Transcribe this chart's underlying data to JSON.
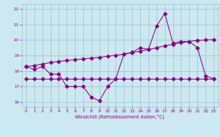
{
  "xlabel": "Windchill (Refroidissement éolien,°C)",
  "bg_color": "#cce8f0",
  "grid_color": "#99bbcc",
  "line_color": "#880088",
  "xlim": [
    -0.5,
    23.5
  ],
  "ylim": [
    15.7,
    22.3
  ],
  "yticks": [
    16,
    17,
    18,
    19,
    20,
    21,
    22
  ],
  "xticks": [
    0,
    1,
    2,
    3,
    4,
    5,
    6,
    7,
    8,
    9,
    10,
    11,
    12,
    13,
    14,
    15,
    16,
    17,
    18,
    19,
    20,
    21,
    22,
    23
  ],
  "series1_x": [
    0,
    1,
    2,
    3,
    4,
    5,
    6,
    7,
    8,
    9,
    10,
    11,
    12,
    13,
    14,
    15,
    16,
    17,
    18,
    19,
    20,
    21,
    22,
    23
  ],
  "series1_y": [
    18.3,
    18.1,
    18.3,
    17.8,
    17.8,
    17.0,
    17.0,
    17.0,
    16.3,
    16.1,
    17.0,
    17.5,
    19.1,
    19.2,
    19.5,
    19.4,
    20.9,
    21.7,
    19.8,
    19.9,
    19.9,
    19.5,
    17.7,
    17.5
  ],
  "series2_x": [
    0,
    1,
    2,
    3,
    4,
    5,
    6,
    7,
    8,
    9,
    10,
    11,
    12,
    13,
    14,
    15,
    16,
    17,
    18,
    19,
    20,
    21,
    22,
    23
  ],
  "series2_y": [
    17.5,
    17.5,
    17.5,
    17.5,
    17.5,
    17.5,
    17.5,
    17.5,
    17.5,
    17.5,
    17.5,
    17.5,
    17.5,
    17.5,
    17.5,
    17.5,
    17.5,
    17.5,
    17.5,
    17.5,
    17.5,
    17.5,
    17.5,
    17.5
  ],
  "series3_x": [
    0,
    1,
    2,
    3,
    4,
    5,
    6,
    7,
    8,
    9,
    10,
    11,
    12,
    13,
    14,
    15,
    16,
    17,
    18,
    19,
    20,
    21,
    22,
    23
  ],
  "series3_y": [
    18.3,
    18.35,
    18.45,
    18.55,
    18.62,
    18.68,
    18.73,
    18.78,
    18.83,
    18.88,
    18.95,
    19.02,
    19.08,
    19.18,
    19.28,
    19.38,
    19.5,
    19.62,
    19.72,
    19.82,
    19.9,
    19.97,
    20.0,
    20.02
  ]
}
